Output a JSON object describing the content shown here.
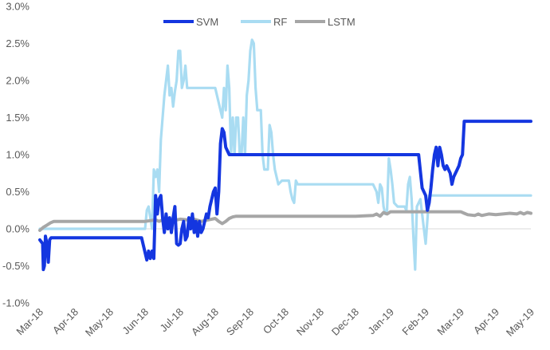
{
  "chart_data": {
    "type": "line",
    "title": "",
    "xlabel": "",
    "ylabel": "",
    "x_ticks": [
      "Mar-18",
      "Apr-18",
      "May-18",
      "Jun-18",
      "Jul-18",
      "Aug-18",
      "Sep-18",
      "Oct-18",
      "Nov-18",
      "Dec-18",
      "Jan-19",
      "Feb-19",
      "Mar-19",
      "Apr-19",
      "May-19"
    ],
    "y_ticks": [
      "-1.0%",
      "-0.5%",
      "0.0%",
      "0.5%",
      "1.0%",
      "1.5%",
      "2.0%",
      "2.5%",
      "3.0%"
    ],
    "ylim": [
      -1.0,
      3.0
    ],
    "xlim": [
      0,
      14
    ],
    "unit": "%",
    "grid": false,
    "legend_position": "top-center",
    "series": [
      {
        "name": "SVM",
        "color": "#1436e0",
        "x": [
          0.0,
          0.08,
          0.1,
          0.13,
          0.16,
          0.2,
          0.24,
          0.28,
          0.32,
          0.36,
          1.0,
          2.0,
          2.9,
          3.05,
          3.1,
          3.15,
          3.2,
          3.25,
          3.3,
          3.35,
          3.4,
          3.45,
          3.5,
          3.55,
          3.6,
          3.65,
          3.7,
          3.75,
          3.8,
          3.85,
          3.9,
          3.95,
          4.0,
          4.05,
          4.1,
          4.15,
          4.2,
          4.25,
          4.3,
          4.35,
          4.4,
          4.45,
          4.5,
          4.55,
          4.6,
          4.65,
          4.7,
          4.75,
          4.8,
          4.85,
          4.9,
          4.95,
          5.0,
          5.05,
          5.1,
          5.15,
          5.2,
          5.25,
          5.3,
          5.35,
          5.4,
          5.5,
          6.0,
          7.0,
          8.0,
          9.0,
          10.0,
          10.5,
          10.8,
          10.9,
          11.0,
          11.05,
          11.1,
          11.15,
          11.2,
          11.25,
          11.3,
          11.35,
          11.4,
          11.45,
          11.5,
          11.55,
          11.6,
          11.65,
          11.7,
          11.75,
          11.8,
          11.85,
          11.9,
          11.95,
          12.0,
          12.05,
          12.1,
          12.3,
          13.0,
          14.0
        ],
        "values": [
          -0.15,
          -0.2,
          -0.55,
          -0.5,
          -0.1,
          -0.2,
          -0.45,
          -0.15,
          -0.12,
          -0.12,
          -0.12,
          -0.12,
          -0.12,
          -0.42,
          -0.3,
          -0.4,
          -0.3,
          -0.4,
          0.45,
          0.2,
          0.4,
          0.45,
          0.15,
          -0.05,
          0.2,
          0.0,
          0.15,
          -0.05,
          0.15,
          0.3,
          -0.2,
          -0.22,
          -0.2,
          0.0,
          0.1,
          -0.15,
          -0.1,
          0.15,
          0.0,
          0.2,
          -0.05,
          0.1,
          -0.1,
          0.1,
          -0.05,
          0.0,
          0.1,
          0.2,
          0.15,
          0.3,
          0.4,
          0.5,
          0.55,
          0.2,
          0.5,
          1.15,
          1.35,
          1.3,
          1.1,
          1.05,
          1.0,
          1.0,
          1.0,
          1.0,
          1.0,
          1.0,
          1.0,
          1.0,
          1.0,
          0.55,
          0.45,
          0.25,
          0.35,
          0.55,
          0.8,
          1.0,
          1.1,
          0.85,
          1.1,
          1.0,
          0.85,
          0.8,
          0.85,
          0.8,
          0.75,
          0.6,
          0.7,
          0.75,
          0.8,
          0.85,
          0.95,
          1.0,
          1.45,
          1.45,
          1.45,
          1.45
        ]
      },
      {
        "name": "RF",
        "color": "#a9dcf2",
        "x": [
          0.0,
          1.0,
          2.0,
          3.0,
          3.05,
          3.1,
          3.2,
          3.25,
          3.3,
          3.35,
          3.4,
          3.45,
          3.5,
          3.55,
          3.6,
          3.65,
          3.7,
          3.75,
          3.8,
          3.85,
          3.9,
          3.95,
          4.0,
          4.05,
          4.1,
          4.15,
          4.2,
          4.25,
          4.3,
          4.4,
          4.5,
          5.0,
          5.2,
          5.25,
          5.3,
          5.35,
          5.4,
          5.45,
          5.5,
          5.55,
          5.6,
          5.65,
          5.7,
          5.75,
          5.8,
          5.85,
          5.9,
          5.95,
          6.0,
          6.05,
          6.1,
          6.15,
          6.2,
          6.25,
          6.3,
          6.35,
          6.4,
          6.45,
          6.5,
          6.55,
          6.6,
          6.65,
          6.7,
          6.8,
          6.9,
          7.0,
          7.05,
          7.1,
          7.15,
          7.2,
          7.25,
          7.3,
          7.35,
          7.4,
          7.5,
          8.0,
          9.0,
          9.5,
          9.6,
          9.65,
          9.7,
          9.75,
          9.8,
          9.85,
          9.9,
          9.95,
          10.0,
          10.05,
          10.1,
          10.2,
          10.3,
          10.4,
          10.45,
          10.5,
          10.55,
          10.6,
          10.65,
          10.7,
          10.75,
          10.8,
          10.85,
          10.9,
          10.95,
          11.0,
          11.1,
          11.2,
          12.0,
          13.0,
          14.0
        ],
        "values": [
          0.0,
          0.0,
          0.0,
          0.0,
          0.25,
          0.3,
          0.0,
          0.8,
          0.7,
          0.8,
          0.5,
          1.2,
          1.5,
          1.8,
          2.0,
          2.2,
          1.8,
          1.9,
          1.65,
          1.85,
          2.0,
          2.4,
          2.4,
          1.9,
          2.0,
          2.2,
          1.9,
          1.9,
          1.9,
          1.9,
          1.9,
          1.9,
          1.5,
          1.9,
          1.6,
          2.2,
          1.9,
          1.0,
          1.5,
          1.0,
          1.5,
          1.5,
          1.0,
          1.0,
          1.5,
          1.0,
          1.8,
          2.0,
          2.4,
          2.55,
          2.5,
          1.9,
          1.6,
          1.6,
          1.6,
          1.0,
          0.8,
          0.8,
          0.8,
          1.4,
          1.3,
          1.0,
          0.8,
          0.6,
          0.65,
          0.65,
          0.65,
          0.65,
          0.5,
          0.4,
          0.35,
          0.65,
          0.6,
          0.6,
          0.6,
          0.6,
          0.6,
          0.6,
          0.5,
          0.35,
          0.6,
          0.55,
          0.3,
          0.2,
          0.25,
          0.95,
          0.8,
          0.6,
          0.35,
          0.3,
          0.3,
          0.3,
          0.25,
          0.6,
          0.7,
          0.4,
          -0.1,
          -0.55,
          0.3,
          0.35,
          0.4,
          0.2,
          0.0,
          -0.2,
          0.45,
          0.45,
          0.45,
          0.45,
          0.45
        ]
      },
      {
        "name": "LSTM",
        "color": "#a6a6a6",
        "x": [
          0.0,
          0.1,
          0.2,
          0.3,
          0.4,
          1.0,
          2.0,
          3.0,
          3.3,
          3.4,
          3.5,
          3.6,
          3.7,
          3.8,
          3.9,
          4.0,
          4.2,
          4.4,
          4.6,
          4.8,
          5.0,
          5.1,
          5.2,
          5.3,
          5.4,
          5.5,
          5.6,
          5.8,
          6.0,
          7.0,
          8.0,
          9.0,
          9.5,
          9.6,
          9.7,
          9.8,
          9.9,
          10.0,
          10.2,
          11.0,
          12.0,
          12.1,
          12.2,
          12.4,
          12.5,
          12.6,
          12.8,
          13.0,
          13.2,
          13.4,
          13.6,
          13.7,
          13.8,
          13.9,
          14.0
        ],
        "values": [
          -0.02,
          0.02,
          0.05,
          0.08,
          0.1,
          0.1,
          0.1,
          0.1,
          0.12,
          0.1,
          0.12,
          0.11,
          0.12,
          0.1,
          0.12,
          0.13,
          0.12,
          0.13,
          0.1,
          0.12,
          0.14,
          0.1,
          0.07,
          0.1,
          0.14,
          0.16,
          0.17,
          0.17,
          0.17,
          0.17,
          0.17,
          0.17,
          0.18,
          0.2,
          0.17,
          0.22,
          0.2,
          0.23,
          0.23,
          0.23,
          0.23,
          0.21,
          0.19,
          0.18,
          0.2,
          0.18,
          0.2,
          0.19,
          0.2,
          0.21,
          0.2,
          0.22,
          0.2,
          0.22,
          0.21
        ]
      }
    ]
  }
}
